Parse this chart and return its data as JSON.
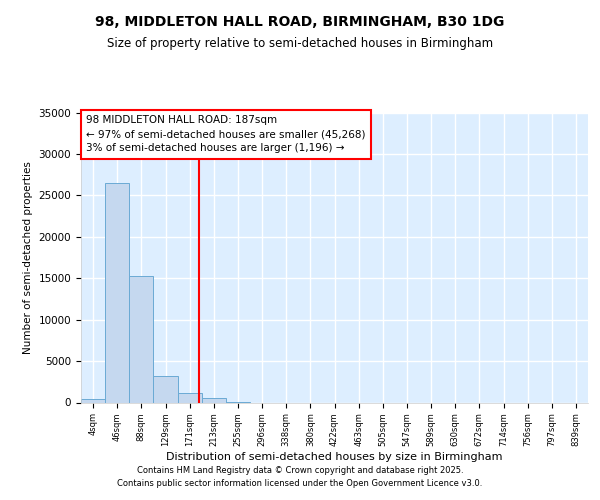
{
  "title_line1": "98, MIDDLETON HALL ROAD, BIRMINGHAM, B30 1DG",
  "title_line2": "Size of property relative to semi-detached houses in Birmingham",
  "xlabel": "Distribution of semi-detached houses by size in Birmingham",
  "ylabel": "Number of semi-detached properties",
  "bin_labels": [
    "4sqm",
    "46sqm",
    "88sqm",
    "129sqm",
    "171sqm",
    "213sqm",
    "255sqm",
    "296sqm",
    "338sqm",
    "380sqm",
    "422sqm",
    "463sqm",
    "505sqm",
    "547sqm",
    "589sqm",
    "630sqm",
    "672sqm",
    "714sqm",
    "756sqm",
    "797sqm",
    "839sqm"
  ],
  "bin_values": [
    400,
    26500,
    15300,
    3200,
    1200,
    500,
    100,
    0,
    0,
    0,
    0,
    0,
    0,
    0,
    0,
    0,
    0,
    0,
    0,
    0,
    0
  ],
  "bar_color": "#c5d8ef",
  "bar_edge_color": "#6aaad4",
  "bg_color": "#ddeeff",
  "grid_color": "#ffffff",
  "vline_color": "red",
  "annotation_line1": "98 MIDDLETON HALL ROAD: 187sqm",
  "annotation_line2": "← 97% of semi-detached houses are smaller (45,268)",
  "annotation_line3": "3% of semi-detached houses are larger (1,196) →",
  "ylim": [
    0,
    35000
  ],
  "yticks": [
    0,
    5000,
    10000,
    15000,
    20000,
    25000,
    30000,
    35000
  ],
  "footer_line1": "Contains HM Land Registry data © Crown copyright and database right 2025.",
  "footer_line2": "Contains public sector information licensed under the Open Government Licence v3.0."
}
